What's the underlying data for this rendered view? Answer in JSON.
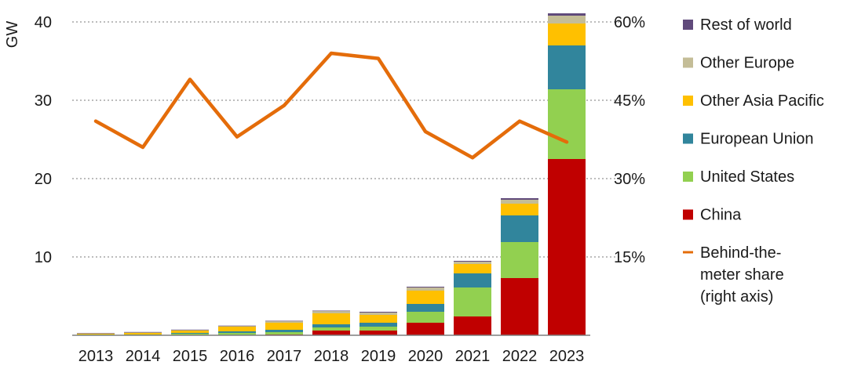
{
  "chart_data": {
    "type": "bar",
    "stacked": true,
    "categories": [
      "2013",
      "2014",
      "2015",
      "2016",
      "2017",
      "2018",
      "2019",
      "2020",
      "2021",
      "2022",
      "2023"
    ],
    "ylabel": "GW",
    "ylim": [
      0,
      40
    ],
    "yticks": [
      "10",
      "20",
      "30",
      "40"
    ],
    "y2lim": [
      0,
      60
    ],
    "y2ticks": [
      "15%",
      "30%",
      "45%",
      "60%"
    ],
    "grid": true,
    "legend_position": "right",
    "series": [
      {
        "name": "China",
        "color": "#c00000",
        "values": [
          0.0,
          0.0,
          0.0,
          0.0,
          0.1,
          0.6,
          0.6,
          1.6,
          2.4,
          7.3,
          22.5
        ]
      },
      {
        "name": "United States",
        "color": "#92d050",
        "values": [
          0.1,
          0.1,
          0.2,
          0.3,
          0.3,
          0.4,
          0.5,
          1.4,
          3.7,
          4.6,
          8.9
        ]
      },
      {
        "name": "European Union",
        "color": "#31859c",
        "values": [
          0.0,
          0.0,
          0.1,
          0.2,
          0.3,
          0.4,
          0.5,
          1.0,
          1.8,
          3.4,
          5.6
        ]
      },
      {
        "name": "Other Asia Pacific",
        "color": "#ffc000",
        "values": [
          0.1,
          0.2,
          0.3,
          0.6,
          0.9,
          1.4,
          1.0,
          1.7,
          1.2,
          1.5,
          2.8
        ]
      },
      {
        "name": "Other Europe",
        "color": "#c4bd97",
        "values": [
          0.05,
          0.1,
          0.1,
          0.1,
          0.2,
          0.3,
          0.3,
          0.4,
          0.3,
          0.5,
          1.0
        ]
      },
      {
        "name": "Rest of world",
        "color": "#604a7b",
        "values": [
          0.02,
          0.02,
          0.02,
          0.03,
          0.05,
          0.05,
          0.1,
          0.1,
          0.1,
          0.2,
          0.3
        ]
      }
    ],
    "line_series": {
      "name": "Behind-the-meter share (right axis)",
      "color": "#e46c0a",
      "axis": "right",
      "values": [
        41,
        36,
        49,
        38,
        44,
        54,
        53,
        39,
        34,
        41,
        37
      ]
    },
    "legend": [
      {
        "label": "Rest of world",
        "color": "#604a7b",
        "kind": "square"
      },
      {
        "label": "Other Europe",
        "color": "#c4bd97",
        "kind": "square"
      },
      {
        "label": "Other Asia Pacific",
        "color": "#ffc000",
        "kind": "square"
      },
      {
        "label": "European Union",
        "color": "#31859c",
        "kind": "square"
      },
      {
        "label": "United States",
        "color": "#92d050",
        "kind": "square"
      },
      {
        "label": "China",
        "color": "#c00000",
        "kind": "square"
      },
      {
        "label": "Behind-the-meter share (right axis)",
        "lines": [
          "Behind-the-",
          "meter share",
          "(right axis)"
        ],
        "color": "#e46c0a",
        "kind": "line"
      }
    ]
  }
}
